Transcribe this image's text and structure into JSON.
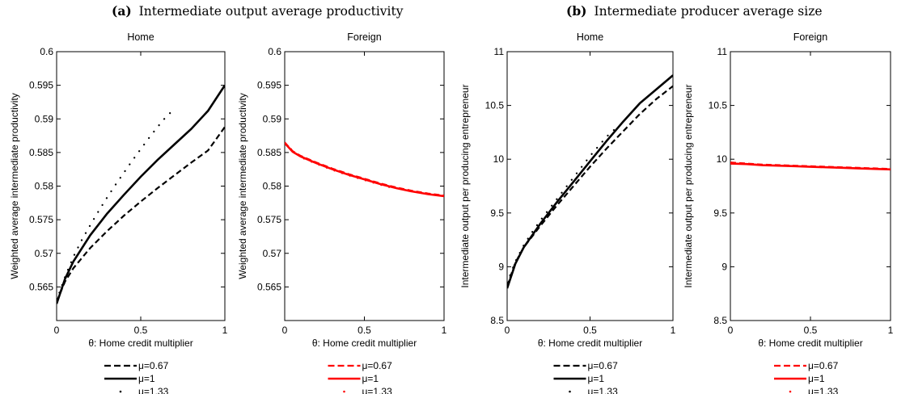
{
  "panel_labels": [
    {
      "tag": "(a)",
      "text": "Intermediate output average productivity"
    },
    {
      "tag": "(b)",
      "text": "Intermediate producer average size"
    }
  ],
  "styles": {
    "black": "#000000",
    "red": "#ff0000",
    "series_line_styles": [
      "dashed",
      "solid",
      "dotted"
    ]
  },
  "chart_data": [
    {
      "type": "line",
      "title": "Home",
      "xlabel": "θ: Home credit multiplier",
      "ylabel": "Weighted average intermediate productivity",
      "xlim": [
        0,
        1
      ],
      "ylim": [
        0.56,
        0.6
      ],
      "xticks": [
        "0",
        "0.5",
        "1"
      ],
      "yticks": [
        "0.565",
        "0.57",
        "0.575",
        "0.58",
        "0.585",
        "0.59",
        "0.595",
        "0.6"
      ],
      "color": "#000000",
      "series": [
        {
          "name": "μ=0.67",
          "style": "dashed",
          "x": [
            0,
            0.05,
            0.1,
            0.2,
            0.3,
            0.4,
            0.5,
            0.6,
            0.7,
            0.8,
            0.9,
            1.0
          ],
          "y": [
            0.5628,
            0.5658,
            0.5678,
            0.5708,
            0.5733,
            0.5756,
            0.5777,
            0.5797,
            0.5816,
            0.5835,
            0.5853,
            0.5888
          ]
        },
        {
          "name": "μ=1",
          "style": "solid",
          "x": [
            0,
            0.05,
            0.1,
            0.2,
            0.3,
            0.4,
            0.5,
            0.6,
            0.7,
            0.8,
            0.9,
            1.0
          ],
          "y": [
            0.5625,
            0.5662,
            0.5688,
            0.5727,
            0.5759,
            0.5787,
            0.5814,
            0.5839,
            0.5862,
            0.5885,
            0.5912,
            0.595
          ]
        },
        {
          "name": "μ=1.33",
          "style": "dotted",
          "x": [
            0,
            0.05,
            0.1,
            0.15,
            0.2,
            0.25,
            0.3,
            0.35,
            0.4,
            0.45,
            0.5,
            0.55,
            0.6,
            0.65,
            0.68
          ],
          "y": [
            0.563,
            0.5665,
            0.5695,
            0.572,
            0.5742,
            0.5763,
            0.5783,
            0.5802,
            0.582,
            0.5838,
            0.5855,
            0.5872,
            0.5888,
            0.5903,
            0.591
          ]
        }
      ]
    },
    {
      "type": "line",
      "title": "Foreign",
      "xlabel": "θ: Home credit multiplier",
      "ylabel": "Weighted average intermediate productivity",
      "xlim": [
        0,
        1
      ],
      "ylim": [
        0.56,
        0.6
      ],
      "xticks": [
        "0",
        "0.5",
        "1"
      ],
      "yticks": [
        "0.565",
        "0.57",
        "0.575",
        "0.58",
        "0.585",
        "0.59",
        "0.595",
        "0.6"
      ],
      "color": "#ff0000",
      "series": [
        {
          "name": "μ=0.67",
          "style": "dashed",
          "x": [
            0,
            0.05,
            0.1,
            0.2,
            0.3,
            0.4,
            0.5,
            0.6,
            0.7,
            0.8,
            0.9,
            1.0
          ],
          "y": [
            0.5865,
            0.5852,
            0.5845,
            0.5835,
            0.5826,
            0.5818,
            0.5811,
            0.5804,
            0.5798,
            0.5793,
            0.5789,
            0.5786
          ]
        },
        {
          "name": "μ=1",
          "style": "solid",
          "x": [
            0,
            0.05,
            0.1,
            0.2,
            0.3,
            0.4,
            0.5,
            0.6,
            0.7,
            0.8,
            0.9,
            1.0
          ],
          "y": [
            0.5864,
            0.5851,
            0.5844,
            0.5834,
            0.5825,
            0.5817,
            0.581,
            0.5803,
            0.5797,
            0.5792,
            0.5788,
            0.5785
          ]
        },
        {
          "name": "μ=1.33",
          "style": "dotted",
          "x": [
            0,
            0.1,
            0.2,
            0.3,
            0.4,
            0.5,
            0.6,
            0.68
          ],
          "y": [
            0.5863,
            0.5843,
            0.5833,
            0.5824,
            0.5816,
            0.5809,
            0.5802,
            0.5797
          ]
        }
      ]
    },
    {
      "type": "line",
      "title": "Home",
      "xlabel": "θ: Home credit multiplier",
      "ylabel": "Intermediate output per producing entrepreneur",
      "xlim": [
        0,
        1
      ],
      "ylim": [
        8.5,
        11
      ],
      "xticks": [
        "0",
        "0.5",
        "1"
      ],
      "yticks": [
        "8.5",
        "9",
        "9.5",
        "10",
        "10.5",
        "11"
      ],
      "color": "#000000",
      "series": [
        {
          "name": "μ=0.67",
          "style": "dashed",
          "x": [
            0,
            0.05,
            0.1,
            0.2,
            0.3,
            0.4,
            0.5,
            0.6,
            0.7,
            0.8,
            0.9,
            1.0
          ],
          "y": [
            8.82,
            9.04,
            9.18,
            9.38,
            9.57,
            9.75,
            9.93,
            10.1,
            10.26,
            10.42,
            10.56,
            10.68
          ]
        },
        {
          "name": "μ=1",
          "style": "solid",
          "x": [
            0,
            0.05,
            0.1,
            0.2,
            0.3,
            0.4,
            0.5,
            0.6,
            0.7,
            0.8,
            0.9,
            1.0
          ],
          "y": [
            8.8,
            9.03,
            9.18,
            9.4,
            9.6,
            9.79,
            9.98,
            10.17,
            10.35,
            10.52,
            10.65,
            10.78
          ]
        },
        {
          "name": "μ=1.33",
          "style": "dotted",
          "x": [
            0,
            0.05,
            0.1,
            0.15,
            0.2,
            0.25,
            0.3,
            0.35,
            0.4,
            0.45,
            0.5,
            0.55,
            0.6,
            0.65,
            0.68
          ],
          "y": [
            8.85,
            9.05,
            9.2,
            9.32,
            9.43,
            9.53,
            9.63,
            9.73,
            9.83,
            9.93,
            10.03,
            10.12,
            10.21,
            10.28,
            10.3
          ]
        }
      ]
    },
    {
      "type": "line",
      "title": "Foreign",
      "xlabel": "θ: Home credit multiplier",
      "ylabel": "Intermediate output per producing entrepreneur",
      "xlim": [
        0,
        1
      ],
      "ylim": [
        8.5,
        11
      ],
      "xticks": [
        "0",
        "0.5",
        "1"
      ],
      "yticks": [
        "8.5",
        "9",
        "9.5",
        "10",
        "10.5",
        "11"
      ],
      "color": "#ff0000",
      "series": [
        {
          "name": "μ=0.67",
          "style": "dashed",
          "x": [
            0,
            0.1,
            0.2,
            0.3,
            0.4,
            0.5,
            0.6,
            0.7,
            0.8,
            0.9,
            1.0
          ],
          "y": [
            9.97,
            9.96,
            9.95,
            9.945,
            9.94,
            9.935,
            9.93,
            9.925,
            9.92,
            9.915,
            9.91
          ]
        },
        {
          "name": "μ=1",
          "style": "solid",
          "x": [
            0,
            0.1,
            0.2,
            0.3,
            0.4,
            0.5,
            0.6,
            0.7,
            0.8,
            0.9,
            1.0
          ],
          "y": [
            9.96,
            9.955,
            9.945,
            9.94,
            9.935,
            9.93,
            9.925,
            9.92,
            9.915,
            9.91,
            9.905
          ]
        },
        {
          "name": "μ=1.33",
          "style": "dotted",
          "x": [
            0,
            0.1,
            0.2,
            0.3,
            0.4,
            0.5,
            0.6,
            0.68
          ],
          "y": [
            9.96,
            9.955,
            9.945,
            9.94,
            9.935,
            9.93,
            9.925,
            9.92
          ]
        }
      ]
    }
  ]
}
